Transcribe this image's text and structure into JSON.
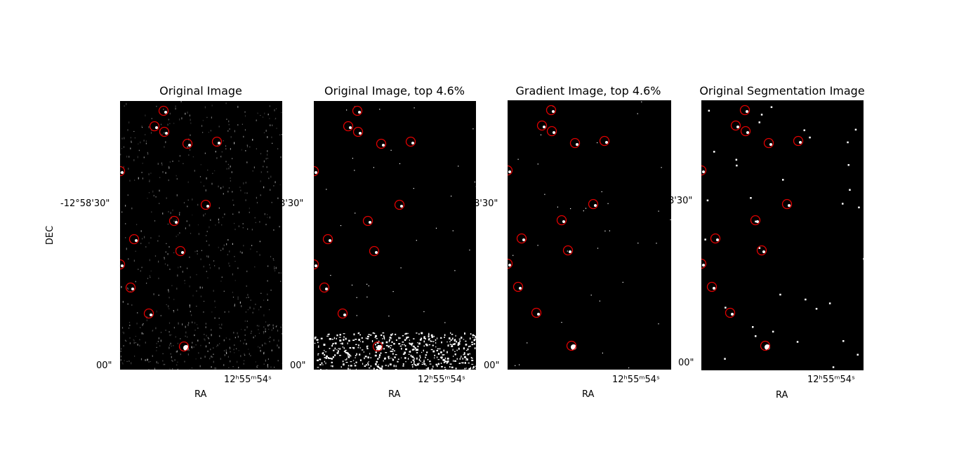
{
  "panels": [
    {
      "title": "Original Image",
      "style": "noisy"
    },
    {
      "title": "Original Image, top 4.6%",
      "style": "threshold"
    },
    {
      "title": "Gradient Image, top 4.6%",
      "style": "gradient"
    },
    {
      "title": "Original Segmentation Image",
      "style": "segmentation"
    }
  ],
  "axes": {
    "xlabel": "RA",
    "ylabel": "DEC",
    "dec_tick_first": "-12°58'30\"",
    "dec_tick_partial": "8'30\"",
    "dec_tick_bottom": "00\"",
    "ra_tick": "12ʰ55ᵐ54ˢ"
  },
  "colors": {
    "background": "#000000",
    "source": "#ffffff",
    "marker": "#e00000"
  },
  "marker_icon": "red-circle-marker-icon"
}
